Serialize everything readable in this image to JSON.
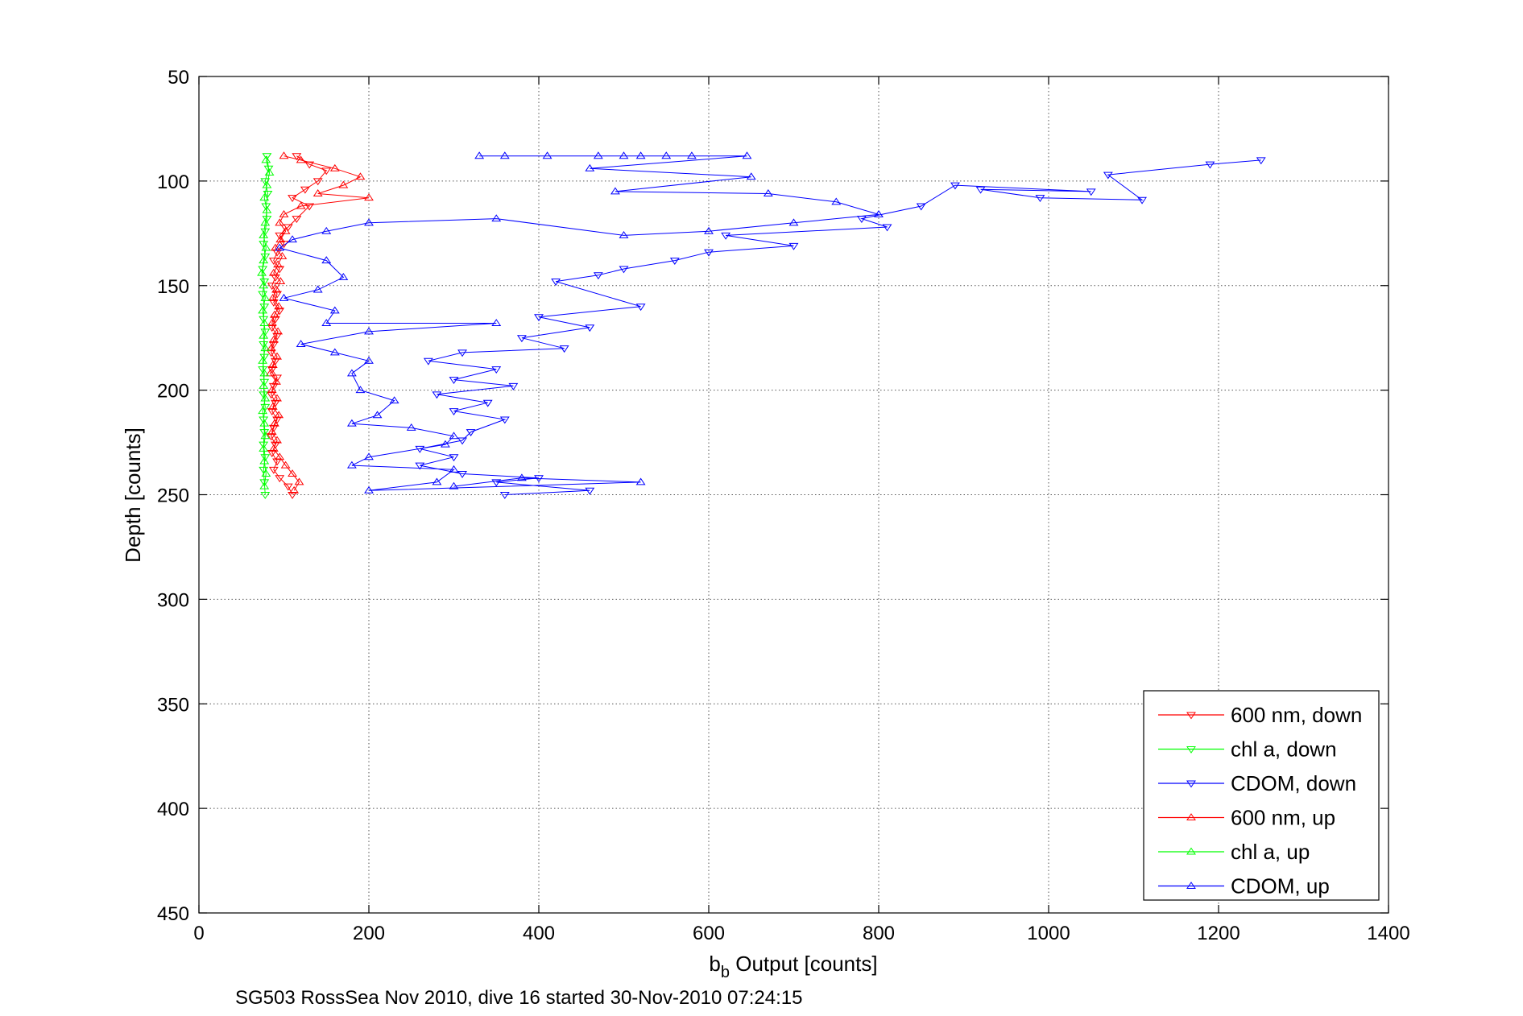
{
  "chart_data": {
    "type": "scatter",
    "xlabel_main": "b",
    "xlabel_sub": "b",
    "xlabel_rest": " Output [counts]",
    "ylabel": "Depth [counts]",
    "caption": "SG503 RossSea Nov 2010, dive 16 started 30-Nov-2010 07:24:15",
    "xlim": [
      0,
      1400
    ],
    "ylim": [
      50,
      450
    ],
    "y_reversed": true,
    "grid": true,
    "legend_position": "bottom-right",
    "x_ticks": [
      0,
      200,
      400,
      600,
      800,
      1000,
      1200,
      1400
    ],
    "y_ticks": [
      50,
      100,
      150,
      200,
      250,
      300,
      350,
      400,
      450
    ],
    "x_tick_labels": [
      "0",
      "200",
      "400",
      "600",
      "800",
      "1000",
      "1200",
      "1400"
    ],
    "y_tick_labels": [
      "50",
      "100",
      "150",
      "200",
      "250",
      "300",
      "350",
      "400",
      "450"
    ],
    "series": [
      {
        "name": "600 nm, down",
        "color": "#ff0000",
        "marker": "triangle-down",
        "points": [
          [
            115,
            88
          ],
          [
            130,
            92
          ],
          [
            150,
            95
          ],
          [
            140,
            100
          ],
          [
            125,
            104
          ],
          [
            110,
            108
          ],
          [
            130,
            112
          ],
          [
            115,
            118
          ],
          [
            105,
            122
          ],
          [
            95,
            126
          ],
          [
            100,
            130
          ],
          [
            92,
            134
          ],
          [
            88,
            138
          ],
          [
            95,
            142
          ],
          [
            90,
            146
          ],
          [
            86,
            150
          ],
          [
            92,
            154
          ],
          [
            88,
            158
          ],
          [
            95,
            162
          ],
          [
            90,
            166
          ],
          [
            86,
            170
          ],
          [
            92,
            174
          ],
          [
            88,
            178
          ],
          [
            85,
            182
          ],
          [
            90,
            186
          ],
          [
            86,
            190
          ],
          [
            92,
            194
          ],
          [
            88,
            198
          ],
          [
            85,
            202
          ],
          [
            90,
            206
          ],
          [
            86,
            210
          ],
          [
            92,
            214
          ],
          [
            88,
            218
          ],
          [
            85,
            222
          ],
          [
            90,
            226
          ],
          [
            86,
            230
          ],
          [
            92,
            234
          ],
          [
            88,
            238
          ],
          [
            95,
            242
          ],
          [
            105,
            246
          ],
          [
            110,
            250
          ]
        ]
      },
      {
        "name": "chl a, down",
        "color": "#00ff00",
        "marker": "triangle-down",
        "points": [
          [
            80,
            88
          ],
          [
            82,
            94
          ],
          [
            78,
            100
          ],
          [
            81,
            106
          ],
          [
            79,
            112
          ],
          [
            80,
            118
          ],
          [
            78,
            124
          ],
          [
            76,
            130
          ],
          [
            78,
            136
          ],
          [
            75,
            142
          ],
          [
            77,
            148
          ],
          [
            75,
            154
          ],
          [
            77,
            160
          ],
          [
            76,
            166
          ],
          [
            78,
            172
          ],
          [
            76,
            178
          ],
          [
            77,
            184
          ],
          [
            75,
            190
          ],
          [
            77,
            196
          ],
          [
            76,
            202
          ],
          [
            78,
            208
          ],
          [
            76,
            214
          ],
          [
            77,
            220
          ],
          [
            76,
            226
          ],
          [
            78,
            232
          ],
          [
            76,
            238
          ],
          [
            77,
            244
          ],
          [
            78,
            250
          ]
        ]
      },
      {
        "name": "CDOM, down",
        "color": "#0000ff",
        "marker": "triangle-down",
        "points": [
          [
            1250,
            90
          ],
          [
            1190,
            92
          ],
          [
            1070,
            97
          ],
          [
            1110,
            109
          ],
          [
            990,
            108
          ],
          [
            920,
            104
          ],
          [
            1050,
            105
          ],
          [
            890,
            102
          ],
          [
            850,
            112
          ],
          [
            780,
            118
          ],
          [
            810,
            122
          ],
          [
            620,
            126
          ],
          [
            700,
            131
          ],
          [
            600,
            134
          ],
          [
            560,
            138
          ],
          [
            500,
            142
          ],
          [
            470,
            145
          ],
          [
            420,
            148
          ],
          [
            520,
            160
          ],
          [
            400,
            165
          ],
          [
            460,
            170
          ],
          [
            380,
            175
          ],
          [
            430,
            180
          ],
          [
            310,
            182
          ],
          [
            270,
            186
          ],
          [
            350,
            190
          ],
          [
            300,
            195
          ],
          [
            370,
            198
          ],
          [
            280,
            202
          ],
          [
            340,
            206
          ],
          [
            300,
            210
          ],
          [
            360,
            214
          ],
          [
            320,
            220
          ],
          [
            310,
            224
          ],
          [
            260,
            228
          ],
          [
            300,
            232
          ],
          [
            260,
            236
          ],
          [
            310,
            240
          ],
          [
            400,
            242
          ],
          [
            350,
            244
          ],
          [
            460,
            248
          ],
          [
            360,
            250
          ]
        ]
      },
      {
        "name": "600 nm, up",
        "color": "#ff0000",
        "marker": "triangle-up",
        "points": [
          [
            100,
            88
          ],
          [
            120,
            90
          ],
          [
            160,
            94
          ],
          [
            190,
            98
          ],
          [
            170,
            102
          ],
          [
            140,
            106
          ],
          [
            200,
            108
          ],
          [
            120,
            112
          ],
          [
            100,
            116
          ],
          [
            95,
            120
          ],
          [
            102,
            124
          ],
          [
            96,
            128
          ],
          [
            90,
            132
          ],
          [
            98,
            136
          ],
          [
            93,
            140
          ],
          [
            88,
            144
          ],
          [
            96,
            148
          ],
          [
            91,
            152
          ],
          [
            87,
            156
          ],
          [
            94,
            160
          ],
          [
            89,
            164
          ],
          [
            86,
            168
          ],
          [
            93,
            172
          ],
          [
            88,
            176
          ],
          [
            85,
            180
          ],
          [
            92,
            184
          ],
          [
            87,
            188
          ],
          [
            84,
            192
          ],
          [
            91,
            196
          ],
          [
            86,
            200
          ],
          [
            92,
            204
          ],
          [
            87,
            208
          ],
          [
            94,
            212
          ],
          [
            89,
            216
          ],
          [
            86,
            220
          ],
          [
            92,
            224
          ],
          [
            88,
            228
          ],
          [
            95,
            232
          ],
          [
            102,
            236
          ],
          [
            110,
            240
          ],
          [
            118,
            244
          ],
          [
            112,
            248
          ]
        ]
      },
      {
        "name": "chl a, up",
        "color": "#00ff00",
        "marker": "triangle-up",
        "points": [
          [
            79,
            90
          ],
          [
            83,
            96
          ],
          [
            80,
            102
          ],
          [
            77,
            108
          ],
          [
            80,
            114
          ],
          [
            78,
            120
          ],
          [
            76,
            126
          ],
          [
            79,
            132
          ],
          [
            76,
            138
          ],
          [
            74,
            144
          ],
          [
            76,
            150
          ],
          [
            78,
            156
          ],
          [
            75,
            162
          ],
          [
            77,
            168
          ],
          [
            76,
            174
          ],
          [
            78,
            180
          ],
          [
            75,
            186
          ],
          [
            77,
            192
          ],
          [
            76,
            198
          ],
          [
            78,
            204
          ],
          [
            75,
            210
          ],
          [
            77,
            216
          ],
          [
            78,
            222
          ],
          [
            76,
            228
          ],
          [
            77,
            234
          ],
          [
            79,
            240
          ],
          [
            77,
            246
          ]
        ]
      },
      {
        "name": "CDOM, up",
        "color": "#0000ff",
        "marker": "triangle-up",
        "points": [
          [
            330,
            88
          ],
          [
            360,
            88
          ],
          [
            410,
            88
          ],
          [
            470,
            88
          ],
          [
            500,
            88
          ],
          [
            520,
            88
          ],
          [
            550,
            88
          ],
          [
            580,
            88
          ],
          [
            645,
            88
          ],
          [
            460,
            94
          ],
          [
            650,
            98
          ],
          [
            490,
            105
          ],
          [
            670,
            106
          ],
          [
            750,
            110
          ],
          [
            800,
            116
          ],
          [
            700,
            120
          ],
          [
            600,
            124
          ],
          [
            500,
            126
          ],
          [
            350,
            118
          ],
          [
            200,
            120
          ],
          [
            150,
            124
          ],
          [
            110,
            128
          ],
          [
            95,
            132
          ],
          [
            150,
            138
          ],
          [
            170,
            146
          ],
          [
            140,
            152
          ],
          [
            100,
            156
          ],
          [
            160,
            162
          ],
          [
            150,
            168
          ],
          [
            350,
            168
          ],
          [
            200,
            172
          ],
          [
            120,
            178
          ],
          [
            160,
            182
          ],
          [
            200,
            186
          ],
          [
            180,
            192
          ],
          [
            190,
            200
          ],
          [
            230,
            205
          ],
          [
            210,
            212
          ],
          [
            180,
            216
          ],
          [
            250,
            218
          ],
          [
            300,
            222
          ],
          [
            290,
            226
          ],
          [
            200,
            232
          ],
          [
            180,
            236
          ],
          [
            300,
            238
          ],
          [
            280,
            244
          ],
          [
            200,
            248
          ],
          [
            520,
            244
          ],
          [
            380,
            242
          ],
          [
            300,
            246
          ]
        ]
      }
    ]
  }
}
